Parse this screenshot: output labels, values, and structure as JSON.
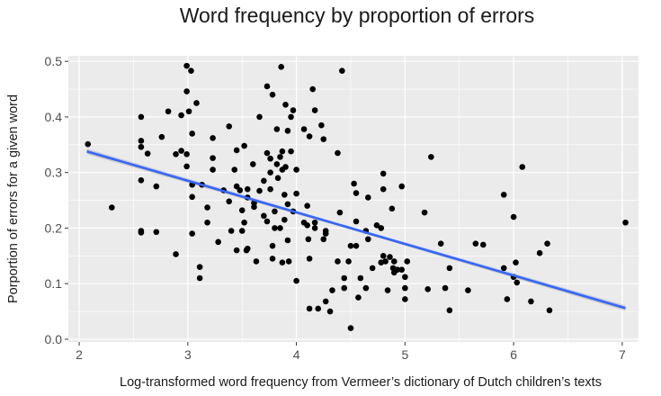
{
  "chart_data": {
    "type": "scatter",
    "title": "Word frequency by proportion of errors",
    "xlabel": "Log-transformed word frequency from Vermeer’s dictionary of Dutch children’s texts",
    "ylabel": "Porportion of errors for a given word",
    "xlim": [
      1.9,
      7.15
    ],
    "ylim": [
      -0.005,
      0.51
    ],
    "x_ticks": [
      "2",
      "3",
      "4",
      "5",
      "6",
      "7"
    ],
    "y_ticks": [
      "0.0",
      "0.1",
      "0.2",
      "0.3",
      "0.4",
      "0.5"
    ],
    "grid": true,
    "legend": "none",
    "colors": {
      "panel": "#ebebeb",
      "grid": "#ffffff",
      "points": "#000000",
      "trend": "#3366ff",
      "ribbon": "#999999"
    },
    "trend_line": {
      "method": "linear",
      "x": [
        2.07,
        7.03
      ],
      "y": [
        0.338,
        0.056
      ]
    },
    "points": [
      [
        2.08,
        0.351
      ],
      [
        2.3,
        0.237
      ],
      [
        2.57,
        0.4
      ],
      [
        2.57,
        0.357
      ],
      [
        2.57,
        0.346
      ],
      [
        2.57,
        0.286
      ],
      [
        2.57,
        0.195
      ],
      [
        2.57,
        0.192
      ],
      [
        2.63,
        0.334
      ],
      [
        2.71,
        0.275
      ],
      [
        2.71,
        0.193
      ],
      [
        2.76,
        0.364
      ],
      [
        2.82,
        0.41
      ],
      [
        2.89,
        0.333
      ],
      [
        2.89,
        0.153
      ],
      [
        2.94,
        0.403
      ],
      [
        2.94,
        0.339
      ],
      [
        2.99,
        0.492
      ],
      [
        2.99,
        0.446
      ],
      [
        2.99,
        0.333
      ],
      [
        2.99,
        0.311
      ],
      [
        3.01,
        0.41
      ],
      [
        3.03,
        0.483
      ],
      [
        3.04,
        0.37
      ],
      [
        3.04,
        0.278
      ],
      [
        3.04,
        0.256
      ],
      [
        3.04,
        0.19
      ],
      [
        3.08,
        0.425
      ],
      [
        3.11,
        0.13
      ],
      [
        3.11,
        0.11
      ],
      [
        3.13,
        0.278
      ],
      [
        3.18,
        0.237
      ],
      [
        3.18,
        0.21
      ],
      [
        3.23,
        0.362
      ],
      [
        3.23,
        0.326
      ],
      [
        3.23,
        0.305
      ],
      [
        3.28,
        0.175
      ],
      [
        3.33,
        0.268
      ],
      [
        3.38,
        0.383
      ],
      [
        3.38,
        0.248
      ],
      [
        3.4,
        0.195
      ],
      [
        3.43,
        0.305
      ],
      [
        3.45,
        0.34
      ],
      [
        3.45,
        0.275
      ],
      [
        3.45,
        0.16
      ],
      [
        3.48,
        0.268
      ],
      [
        3.5,
        0.232
      ],
      [
        3.5,
        0.195
      ],
      [
        3.52,
        0.348
      ],
      [
        3.52,
        0.21
      ],
      [
        3.54,
        0.16
      ],
      [
        3.55,
        0.27
      ],
      [
        3.55,
        0.255
      ],
      [
        3.55,
        0.163
      ],
      [
        3.6,
        0.315
      ],
      [
        3.61,
        0.245
      ],
      [
        3.61,
        0.238
      ],
      [
        3.63,
        0.14
      ],
      [
        3.66,
        0.267
      ],
      [
        3.66,
        0.4
      ],
      [
        3.7,
        0.285
      ],
      [
        3.7,
        0.222
      ],
      [
        3.73,
        0.455
      ],
      [
        3.73,
        0.335
      ],
      [
        3.73,
        0.212
      ],
      [
        3.76,
        0.325
      ],
      [
        3.76,
        0.3
      ],
      [
        3.76,
        0.27
      ],
      [
        3.78,
        0.44
      ],
      [
        3.78,
        0.168
      ],
      [
        3.78,
        0.145
      ],
      [
        3.8,
        0.23
      ],
      [
        3.8,
        0.2
      ],
      [
        3.82,
        0.378
      ],
      [
        3.82,
        0.315
      ],
      [
        3.83,
        0.29
      ],
      [
        3.85,
        0.328
      ],
      [
        3.85,
        0.2
      ],
      [
        3.86,
        0.49
      ],
      [
        3.87,
        0.338
      ],
      [
        3.87,
        0.305
      ],
      [
        3.87,
        0.138
      ],
      [
        3.89,
        0.26
      ],
      [
        3.89,
        0.215
      ],
      [
        3.9,
        0.422
      ],
      [
        3.9,
        0.31
      ],
      [
        3.92,
        0.375
      ],
      [
        3.92,
        0.243
      ],
      [
        3.92,
        0.178
      ],
      [
        3.93,
        0.14
      ],
      [
        3.95,
        0.4
      ],
      [
        3.95,
        0.338
      ],
      [
        3.97,
        0.412
      ],
      [
        3.97,
        0.23
      ],
      [
        4.0,
        0.305
      ],
      [
        4.0,
        0.262
      ],
      [
        4.0,
        0.105
      ],
      [
        4.07,
        0.378
      ],
      [
        4.07,
        0.21
      ],
      [
        4.1,
        0.24
      ],
      [
        4.1,
        0.205
      ],
      [
        4.11,
        0.18
      ],
      [
        4.12,
        0.365
      ],
      [
        4.12,
        0.145
      ],
      [
        4.12,
        0.055
      ],
      [
        4.15,
        0.45
      ],
      [
        4.17,
        0.412
      ],
      [
        4.17,
        0.21
      ],
      [
        4.17,
        0.2
      ],
      [
        4.2,
        0.055
      ],
      [
        4.23,
        0.385
      ],
      [
        4.25,
        0.36
      ],
      [
        4.25,
        0.18
      ],
      [
        4.27,
        0.195
      ],
      [
        4.27,
        0.19
      ],
      [
        4.27,
        0.068
      ],
      [
        4.31,
        0.05
      ],
      [
        4.33,
        0.088
      ],
      [
        4.38,
        0.335
      ],
      [
        4.38,
        0.14
      ],
      [
        4.4,
        0.228
      ],
      [
        4.42,
        0.483
      ],
      [
        4.44,
        0.11
      ],
      [
        4.44,
        0.092
      ],
      [
        4.48,
        0.14
      ],
      [
        4.5,
        0.168
      ],
      [
        4.5,
        0.02
      ],
      [
        4.53,
        0.28
      ],
      [
        4.55,
        0.263
      ],
      [
        4.55,
        0.212
      ],
      [
        4.55,
        0.168
      ],
      [
        4.57,
        0.075
      ],
      [
        4.59,
        0.11
      ],
      [
        4.64,
        0.195
      ],
      [
        4.64,
        0.092
      ],
      [
        4.66,
        0.255
      ],
      [
        4.66,
        0.18
      ],
      [
        4.7,
        0.128
      ],
      [
        4.74,
        0.205
      ],
      [
        4.78,
        0.2
      ],
      [
        4.78,
        0.138
      ],
      [
        4.8,
        0.298
      ],
      [
        4.8,
        0.27
      ],
      [
        4.8,
        0.15
      ],
      [
        4.82,
        0.14
      ],
      [
        4.84,
        0.088
      ],
      [
        4.86,
        0.148
      ],
      [
        4.88,
        0.235
      ],
      [
        4.89,
        0.128
      ],
      [
        4.9,
        0.14
      ],
      [
        4.9,
        0.12
      ],
      [
        4.93,
        0.125
      ],
      [
        4.97,
        0.275
      ],
      [
        4.97,
        0.125
      ],
      [
        5.0,
        0.112
      ],
      [
        5.0,
        0.092
      ],
      [
        5.0,
        0.072
      ],
      [
        5.02,
        0.14
      ],
      [
        5.18,
        0.228
      ],
      [
        5.21,
        0.09
      ],
      [
        5.24,
        0.328
      ],
      [
        5.33,
        0.172
      ],
      [
        5.37,
        0.092
      ],
      [
        5.41,
        0.128
      ],
      [
        5.41,
        0.052
      ],
      [
        5.58,
        0.088
      ],
      [
        5.65,
        0.172
      ],
      [
        5.72,
        0.17
      ],
      [
        5.91,
        0.26
      ],
      [
        5.91,
        0.128
      ],
      [
        5.94,
        0.072
      ],
      [
        6.0,
        0.22
      ],
      [
        6.0,
        0.112
      ],
      [
        6.02,
        0.138
      ],
      [
        6.03,
        0.102
      ],
      [
        6.08,
        0.31
      ],
      [
        6.16,
        0.068
      ],
      [
        6.24,
        0.155
      ],
      [
        6.31,
        0.172
      ],
      [
        6.33,
        0.052
      ],
      [
        7.03,
        0.21
      ]
    ]
  }
}
